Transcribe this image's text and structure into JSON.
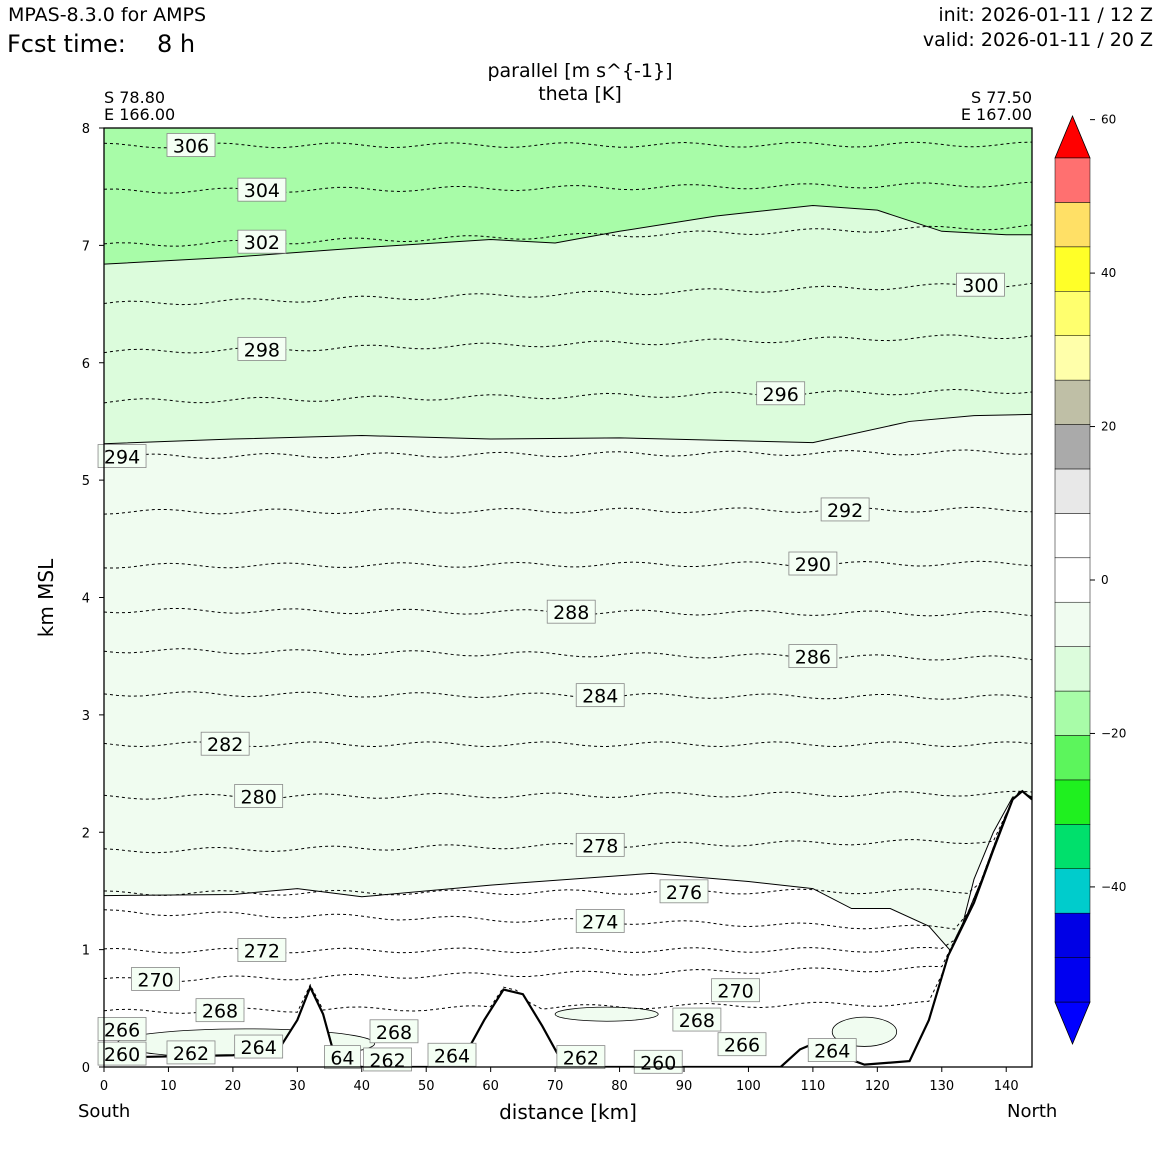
{
  "header": {
    "model": "MPAS-8.3.0 for AMPS",
    "fcst_label": "Fcst time:",
    "fcst_value": "8 h",
    "init": "init: 2026-01-11 / 12 Z",
    "valid": "valid: 2026-01-11 / 20 Z"
  },
  "chart_data": {
    "type": "contour",
    "title_line1": "parallel [m s^{-1}]",
    "title_line2": "theta [K]",
    "xlabel": "distance [km]",
    "ylabel": "km MSL",
    "xlim": [
      0,
      144
    ],
    "ylim": [
      0,
      8
    ],
    "xticks": [
      0,
      10,
      20,
      30,
      40,
      50,
      60,
      70,
      80,
      90,
      100,
      110,
      120,
      130,
      140
    ],
    "yticks": [
      0,
      1,
      2,
      3,
      4,
      5,
      6,
      7,
      8
    ],
    "left_end": {
      "direction": "South",
      "lat": "S 78.80",
      "lon": "E 166.00"
    },
    "right_end": {
      "direction": "North",
      "lat": "S 77.50",
      "lon": "E 167.00"
    },
    "terrain": [
      [
        0,
        0.08
      ],
      [
        10,
        0.09
      ],
      [
        20,
        0.1
      ],
      [
        27,
        0.14
      ],
      [
        30,
        0.4
      ],
      [
        32,
        0.68
      ],
      [
        34,
        0.45
      ],
      [
        36,
        0.05
      ],
      [
        40,
        0.0
      ],
      [
        55,
        0.0
      ],
      [
        59,
        0.4
      ],
      [
        62,
        0.66
      ],
      [
        65,
        0.62
      ],
      [
        68,
        0.35
      ],
      [
        71,
        0.05
      ],
      [
        75,
        0.0
      ],
      [
        105,
        0.0
      ],
      [
        108,
        0.15
      ],
      [
        111,
        0.22
      ],
      [
        114,
        0.1
      ],
      [
        118,
        0.02
      ],
      [
        125,
        0.05
      ],
      [
        128,
        0.4
      ],
      [
        131,
        0.95
      ],
      [
        135,
        1.4
      ],
      [
        138,
        1.85
      ],
      [
        141,
        2.28
      ],
      [
        142.5,
        2.35
      ],
      [
        144,
        2.28
      ]
    ],
    "fill_boundaries": {
      "minus15": [
        [
          0,
          6.84
        ],
        [
          20,
          6.9
        ],
        [
          40,
          6.98
        ],
        [
          60,
          7.05
        ],
        [
          70,
          7.02
        ],
        [
          80,
          7.12
        ],
        [
          95,
          7.25
        ],
        [
          110,
          7.34
        ],
        [
          120,
          7.3
        ],
        [
          130,
          7.12
        ],
        [
          140,
          7.09
        ],
        [
          144,
          7.09
        ]
      ],
      "minus10": [
        [
          0,
          5.31
        ],
        [
          20,
          5.35
        ],
        [
          40,
          5.38
        ],
        [
          60,
          5.35
        ],
        [
          80,
          5.36
        ],
        [
          110,
          5.32
        ],
        [
          125,
          5.5
        ],
        [
          135,
          5.55
        ],
        [
          144,
          5.56
        ]
      ],
      "minus5": [
        [
          0,
          1.46
        ],
        [
          20,
          1.47
        ],
        [
          30,
          1.52
        ],
        [
          40,
          1.45
        ],
        [
          60,
          1.55
        ],
        [
          85,
          1.65
        ],
        [
          100,
          1.58
        ],
        [
          110,
          1.52
        ],
        [
          116,
          1.35
        ],
        [
          122,
          1.35
        ],
        [
          128,
          1.2
        ],
        [
          132,
          0.95
        ],
        [
          135,
          1.6
        ],
        [
          138,
          2.0
        ],
        [
          141,
          2.3
        ],
        [
          144,
          2.3
        ]
      ]
    },
    "isentropes": [
      {
        "label": "306",
        "z0": 7.85,
        "z1": 7.86,
        "lx": 13.5
      },
      {
        "label": "304",
        "z0": 7.46,
        "z1": 7.52,
        "lx": 24.5
      },
      {
        "label": "302",
        "z0": 7.0,
        "z1": 7.16,
        "lx": 24.5
      },
      {
        "label": "300",
        "z0": 6.5,
        "z1": 6.67,
        "lx": 136
      },
      {
        "label": "298",
        "z0": 6.09,
        "z1": 6.23,
        "lx": 24.5
      },
      {
        "label": "296",
        "z0": 5.67,
        "z1": 5.76,
        "lx": 105
      },
      {
        "label": "294",
        "z0": 5.2,
        "z1": 5.24,
        "lx": 2.8
      },
      {
        "label": "292",
        "z0": 4.73,
        "z1": 4.75,
        "lx": 115
      },
      {
        "label": "290",
        "z0": 4.27,
        "z1": 4.29,
        "lx": 110
      },
      {
        "label": "288",
        "z0": 3.89,
        "z1": 3.86,
        "lx": 72.5
      },
      {
        "label": "286",
        "z0": 3.55,
        "z1": 3.48,
        "lx": 110
      },
      {
        "label": "284",
        "z0": 3.18,
        "z1": 3.15,
        "lx": 77
      },
      {
        "label": "282",
        "z0": 2.75,
        "z1": 2.75,
        "lx": 18.8
      },
      {
        "label": "280",
        "z0": 2.3,
        "z1": 2.33,
        "lx": 24
      },
      {
        "label": "278",
        "z0": 1.84,
        "z1": 1.93,
        "lx": 77
      },
      {
        "label": "276",
        "z0": 1.48,
        "z1": 1.5,
        "lx": 90
      },
      {
        "label": "274",
        "z0": 1.32,
        "z1": 1.17,
        "lx": 77
      },
      {
        "label": "272",
        "z0": 0.99,
        "z1": 1.0,
        "lx": 24.5
      },
      {
        "label": "270",
        "z0": 0.74,
        "z1": 0.85,
        "lx": 8
      },
      {
        "label": "268",
        "z0": 0.47,
        "z1": 0.55,
        "lx": 18
      }
    ],
    "low_labels": [
      {
        "label": "266",
        "x": 2.8,
        "z": 0.32
      },
      {
        "label": "260",
        "x": 2.8,
        "z": 0.11
      },
      {
        "label": "262",
        "x": 13.5,
        "z": 0.12
      },
      {
        "label": "264",
        "x": 24,
        "z": 0.17
      },
      {
        "label": "268",
        "x": 45,
        "z": 0.3
      },
      {
        "label": "262",
        "x": 44,
        "z": 0.06
      },
      {
        "label": "264",
        "x": 54,
        "z": 0.1
      },
      {
        "label": "262",
        "x": 74,
        "z": 0.08
      },
      {
        "label": "260",
        "x": 86,
        "z": 0.04
      },
      {
        "label": "270",
        "x": 98,
        "z": 0.65
      },
      {
        "label": "268",
        "x": 92,
        "z": 0.4
      },
      {
        "label": "266",
        "x": 99,
        "z": 0.19
      },
      {
        "label": "264",
        "x": 113,
        "z": 0.14
      },
      {
        "label": "64",
        "x": 37,
        "z": 0.08
      }
    ],
    "colorbar": {
      "levels": [
        -60,
        -55,
        -50,
        -45,
        -40,
        -35,
        -30,
        -25,
        -20,
        -15,
        -10,
        -5,
        0,
        5,
        10,
        15,
        20,
        25,
        30,
        35,
        40,
        45,
        50,
        55,
        60
      ],
      "colors": [
        "#0000ff",
        "#0000f0",
        "#0000e6",
        "#00cccc",
        "#00e06c",
        "#1ff01f",
        "#5cf55c",
        "#a8fca8",
        "#dcfcdc",
        "#f0fcf0",
        "#ffffff",
        "#ffffff",
        "#e8e8e8",
        "#aaaaaa",
        "#bfbfa6",
        "#ffffaa",
        "#ffff6e",
        "#ffff28",
        "#ffe066",
        "#ff7070",
        "#ff0000"
      ],
      "ticks": [
        60,
        40,
        20,
        0,
        "−20",
        "−40"
      ]
    }
  }
}
